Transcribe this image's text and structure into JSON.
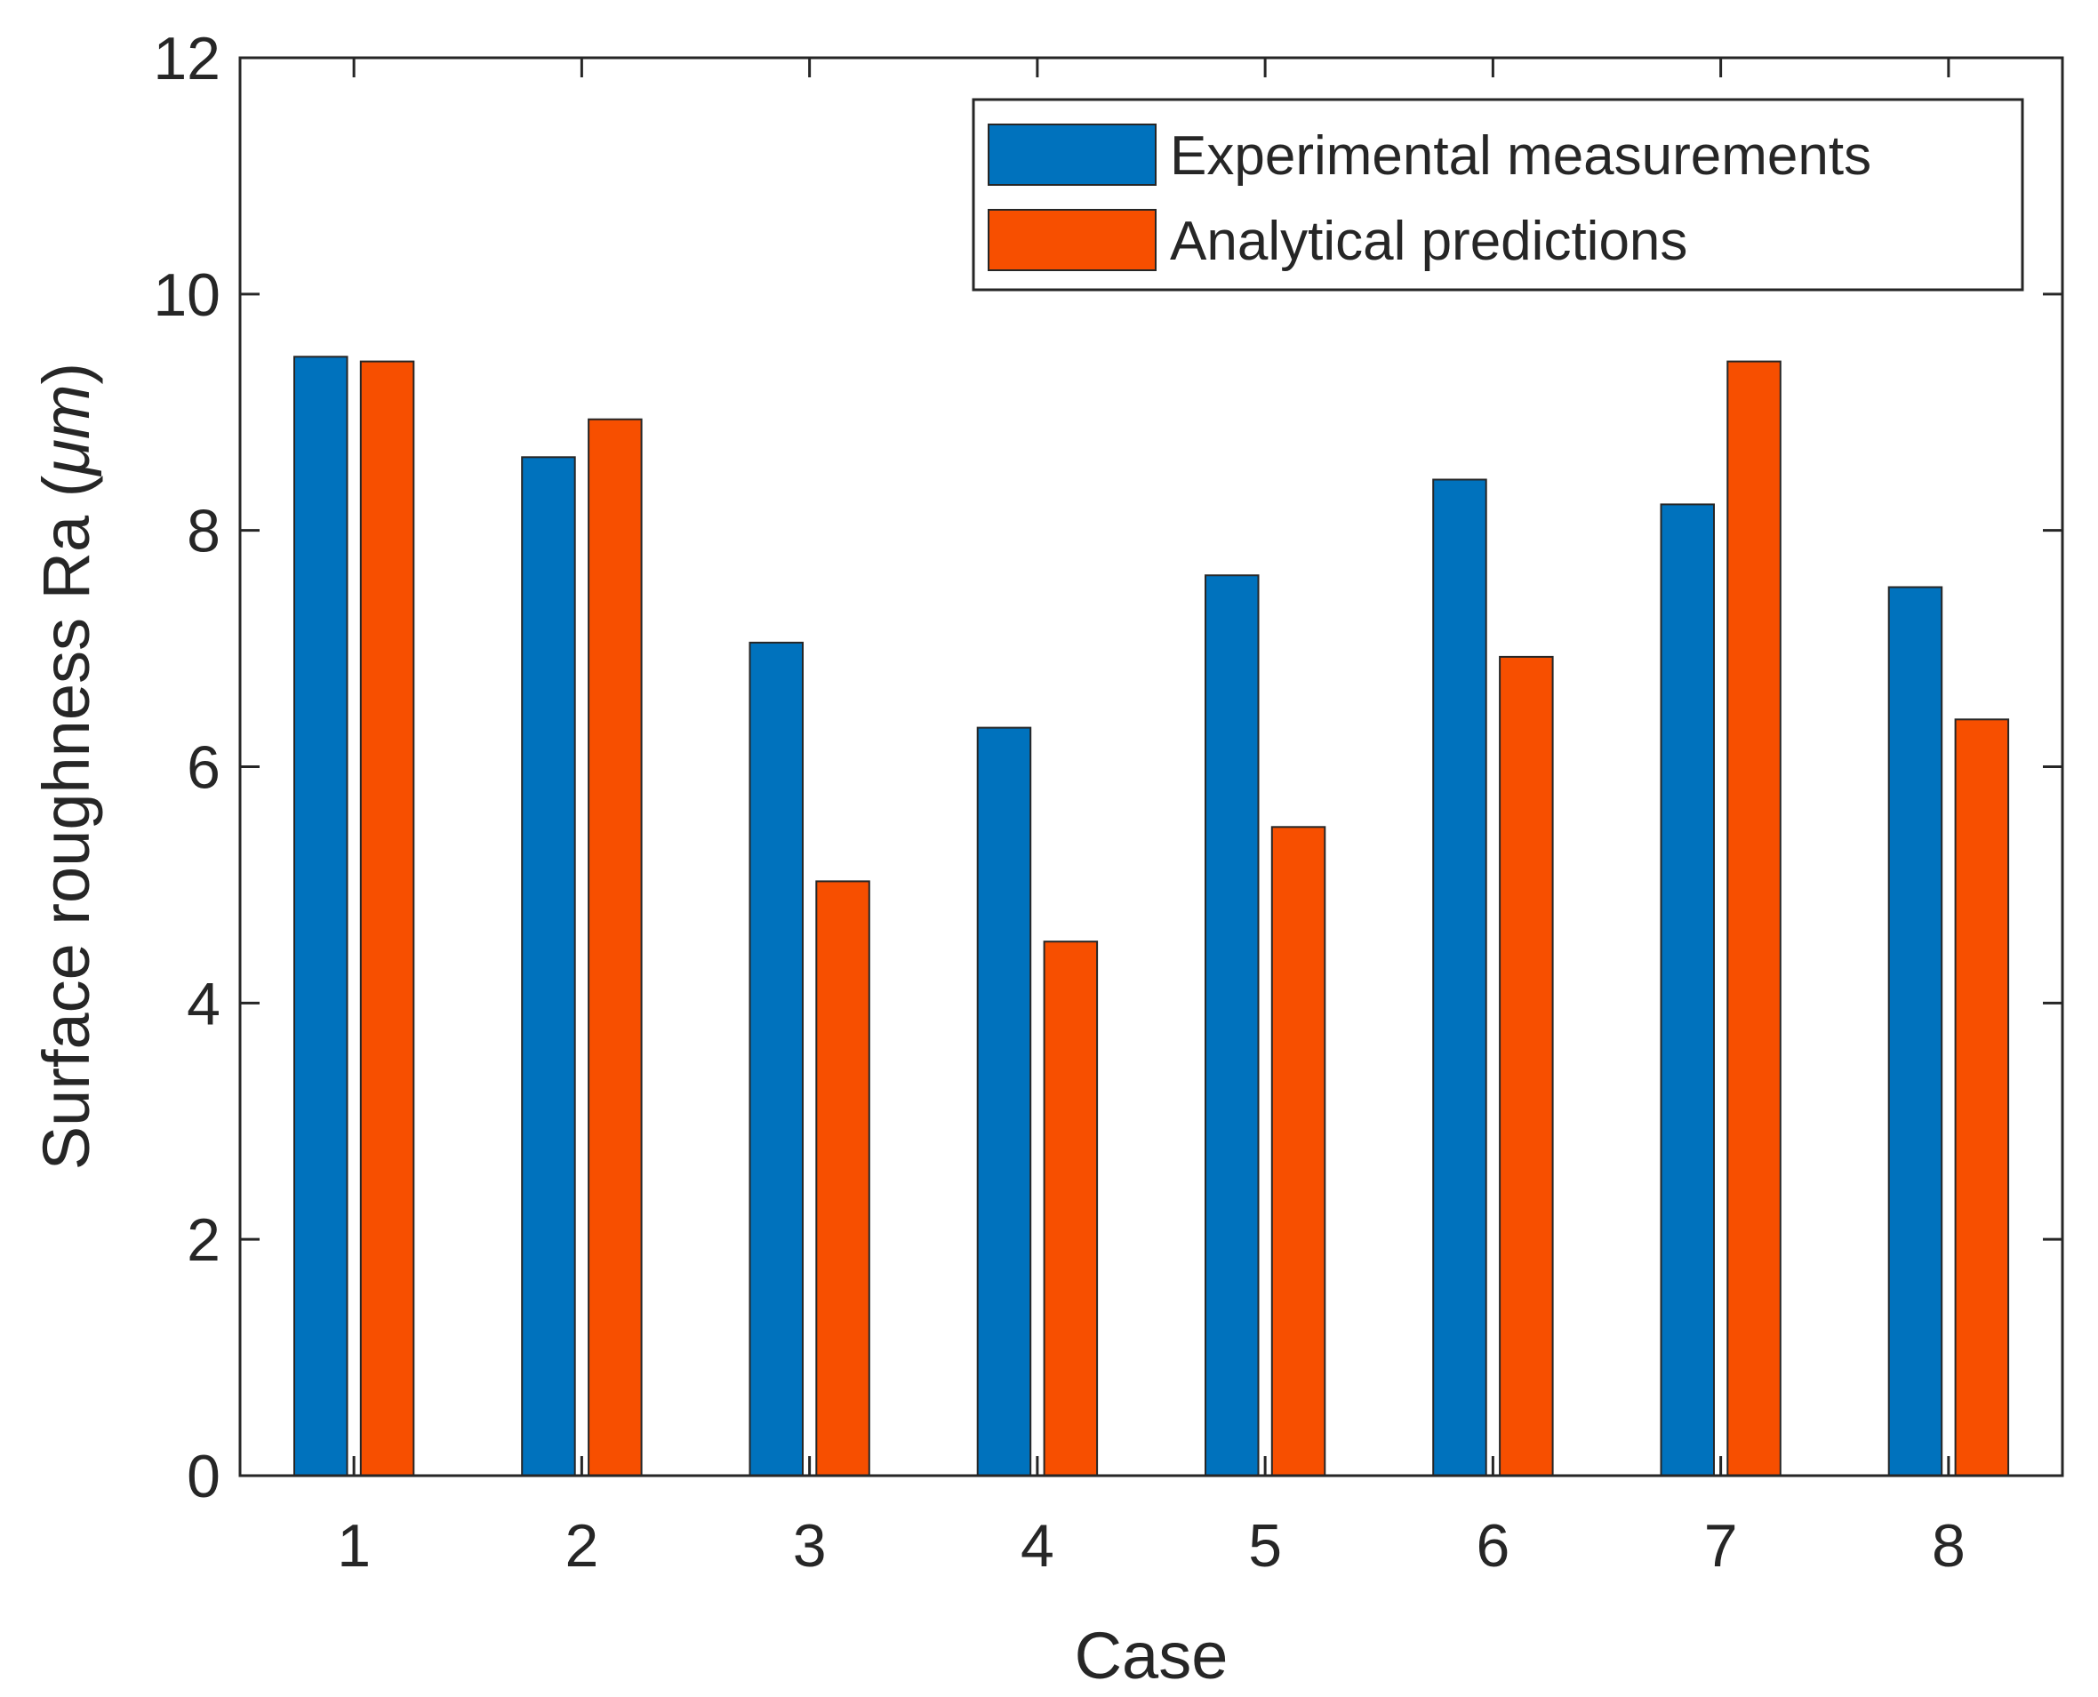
{
  "chart_data": {
    "type": "bar",
    "title": "",
    "xlabel": "Case",
    "ylabel": "Surface roughness Ra (",
    "ylabel_unit": "μm",
    "ylabel_close": ")",
    "categories": [
      "1",
      "2",
      "3",
      "4",
      "5",
      "6",
      "7",
      "8"
    ],
    "series": [
      {
        "name": "Experimental measurements",
        "color": "#0072BD",
        "values": [
          9.47,
          8.62,
          7.05,
          6.33,
          7.62,
          8.43,
          8.22,
          7.52
        ]
      },
      {
        "name": "Analytical predictions",
        "color": "#F74F00",
        "values": [
          9.43,
          8.94,
          5.03,
          4.52,
          5.49,
          6.93,
          9.43,
          6.4
        ]
      }
    ],
    "ylim": [
      0,
      12
    ],
    "yticks": [
      "0",
      "2",
      "4",
      "6",
      "8",
      "10",
      "12"
    ],
    "grid": false,
    "legend_position": "top-right"
  }
}
